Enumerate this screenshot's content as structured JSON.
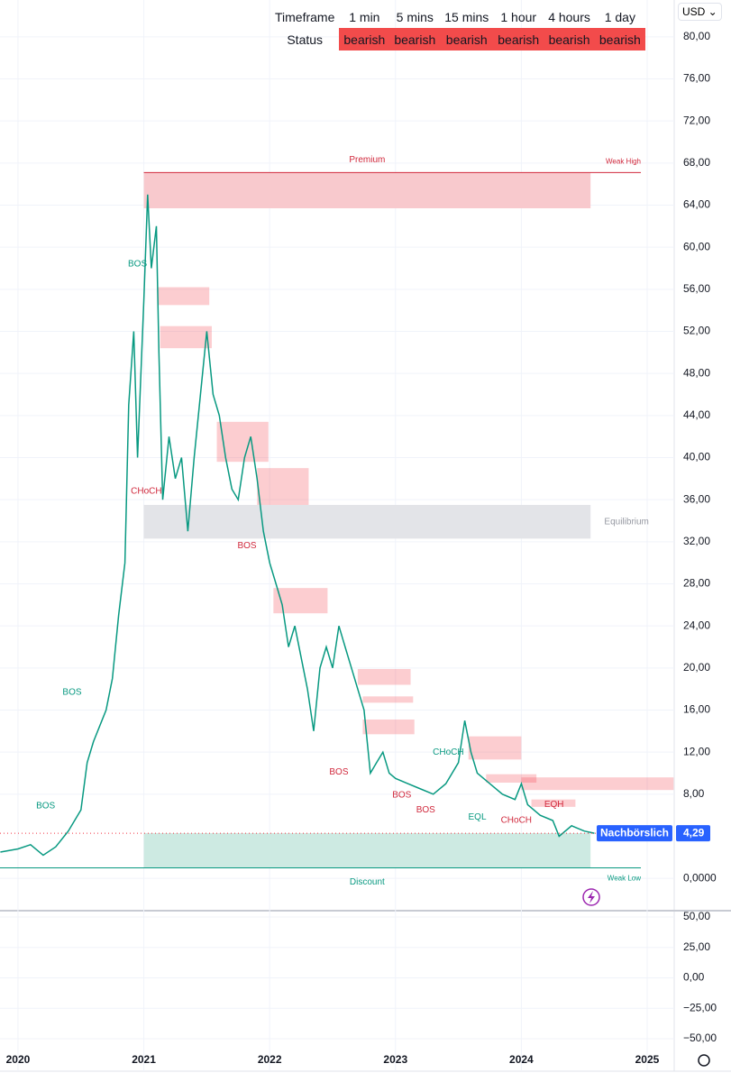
{
  "currency": "USD",
  "status_table": {
    "header": [
      "Timeframe",
      "1 min",
      "5 mins",
      "15 mins",
      "1 hour",
      "4 hours",
      "1 day"
    ],
    "row": [
      "Status",
      "bearish",
      "bearish",
      "bearish",
      "bearish",
      "bearish",
      "bearish"
    ]
  },
  "chart_data": [
    {
      "type": "line",
      "x": [
        2019.86,
        2020.0,
        2020.1,
        2020.2,
        2020.3,
        2020.4,
        2020.5,
        2020.55,
        2020.6,
        2020.7,
        2020.75,
        2020.8,
        2020.85,
        2020.88,
        2020.92,
        2020.95,
        2021.0,
        2021.03,
        2021.06,
        2021.1,
        2021.12,
        2021.15,
        2021.2,
        2021.25,
        2021.3,
        2021.35,
        2021.4,
        2021.45,
        2021.5,
        2021.55,
        2021.6,
        2021.65,
        2021.7,
        2021.75,
        2021.8,
        2021.85,
        2021.9,
        2021.95,
        2022.0,
        2022.05,
        2022.1,
        2022.15,
        2022.2,
        2022.25,
        2022.3,
        2022.35,
        2022.4,
        2022.45,
        2022.5,
        2022.55,
        2022.6,
        2022.65,
        2022.7,
        2022.75,
        2022.8,
        2022.85,
        2022.9,
        2022.95,
        2023.0,
        2023.1,
        2023.2,
        2023.3,
        2023.4,
        2023.5,
        2023.55,
        2023.6,
        2023.65,
        2023.75,
        2023.85,
        2023.95,
        2024.0,
        2024.05,
        2024.15,
        2024.25,
        2024.3,
        2024.4,
        2024.5,
        2024.58
      ],
      "values": [
        2.5,
        2.8,
        3.2,
        2.2,
        3.0,
        4.5,
        6.5,
        11,
        13,
        16,
        19,
        25,
        30,
        45,
        52,
        40,
        55,
        65,
        58,
        62,
        50,
        36,
        42,
        38,
        40,
        33,
        40,
        46,
        52,
        46,
        44,
        40,
        37,
        36,
        40,
        42,
        38,
        33,
        30,
        28,
        26,
        22,
        24,
        21,
        18,
        14,
        20,
        22,
        20,
        24,
        22,
        20,
        18,
        16,
        10,
        11,
        12,
        10,
        9.5,
        9,
        8.5,
        8,
        9,
        11,
        15,
        12,
        10,
        9,
        8,
        7.5,
        9,
        7,
        6,
        5.5,
        4,
        5,
        4.5,
        4.29
      ],
      "color": "#089981",
      "xlim": [
        2019.857,
        2025.215
      ],
      "xticks": [
        2020,
        2021,
        2022,
        2023,
        2024,
        2025
      ],
      "ylim": [
        -2.9,
        83.5
      ],
      "yticks": [
        {
          "value": 80,
          "label": "80,00"
        },
        {
          "value": 76,
          "label": "76,00"
        },
        {
          "value": 72,
          "label": "72,00"
        },
        {
          "value": 68,
          "label": "68,00"
        },
        {
          "value": 64,
          "label": "64,00"
        },
        {
          "value": 60,
          "label": "60,00"
        },
        {
          "value": 56,
          "label": "56,00"
        },
        {
          "value": 52,
          "label": "52,00"
        },
        {
          "value": 48,
          "label": "48,00"
        },
        {
          "value": 44,
          "label": "44,00"
        },
        {
          "value": 40,
          "label": "40,00"
        },
        {
          "value": 36,
          "label": "36,00"
        },
        {
          "value": 32,
          "label": "32,00"
        },
        {
          "value": 28,
          "label": "28,00"
        },
        {
          "value": 24,
          "label": "24,00"
        },
        {
          "value": 20,
          "label": "20,00"
        },
        {
          "value": 16,
          "label": "16,00"
        },
        {
          "value": 12,
          "label": "12,00"
        },
        {
          "value": 8,
          "label": "8,00"
        },
        {
          "value": 0,
          "label": "0,0000"
        }
      ],
      "grid": true,
      "zones": [
        {
          "label": "Premium",
          "label_side": "top",
          "x": [
            2021.0,
            2024.55
          ],
          "y": [
            63.7,
            67.1
          ],
          "color": "#f8c9cd"
        },
        {
          "label": "Equilibrium",
          "label_side": "right",
          "x": [
            2021.0,
            2024.55
          ],
          "y": [
            32.3,
            35.5
          ],
          "color": "#e3e4e8"
        },
        {
          "label": "Discount",
          "label_side": "bottom",
          "x": [
            2021.0,
            2024.55
          ],
          "y": [
            1.0,
            4.3
          ],
          "color": "#cdeae2"
        }
      ],
      "swing_lines": [
        {
          "label": "Weak High",
          "value": 67.1,
          "x": [
            2021.0,
            2024.95
          ],
          "color": "#d0283c"
        },
        {
          "label": "Weak Low",
          "value": 1.0,
          "x": [
            2019.857,
            2024.95
          ],
          "color": "#089981"
        }
      ],
      "order_blocks": [
        {
          "x": [
            2021.11,
            2021.52
          ],
          "y": [
            54.5,
            56.2
          ]
        },
        {
          "x": [
            2021.13,
            2021.54
          ],
          "y": [
            50.4,
            52.5
          ]
        },
        {
          "x": [
            2021.58,
            2021.99
          ],
          "y": [
            39.6,
            43.4
          ]
        },
        {
          "x": [
            2021.9,
            2022.31
          ],
          "y": [
            35.5,
            39.0
          ]
        },
        {
          "x": [
            2022.03,
            2022.46
          ],
          "y": [
            25.2,
            27.6
          ]
        },
        {
          "x": [
            2022.7,
            2023.12
          ],
          "y": [
            18.4,
            19.9
          ]
        },
        {
          "x": [
            2022.74,
            2023.14
          ],
          "y": [
            16.7,
            17.3
          ]
        },
        {
          "x": [
            2022.74,
            2023.15
          ],
          "y": [
            13.7,
            15.1
          ]
        },
        {
          "x": [
            2023.58,
            2024.0
          ],
          "y": [
            11.3,
            13.5
          ]
        },
        {
          "x": [
            2023.72,
            2024.12
          ],
          "y": [
            9.1,
            9.9
          ]
        },
        {
          "x": [
            2024.0,
            2025.21
          ],
          "y": [
            8.4,
            9.6
          ]
        },
        {
          "x": [
            2024.08,
            2024.43
          ],
          "y": [
            6.8,
            7.5
          ]
        }
      ],
      "structure_labels": [
        {
          "text": "BOS",
          "x": 2020.22,
          "y": 6.9,
          "color": "#089981"
        },
        {
          "text": "BOS",
          "x": 2020.43,
          "y": 17.7,
          "color": "#089981"
        },
        {
          "text": "BOS",
          "x": 2020.95,
          "y": 58.4,
          "color": "#089981"
        },
        {
          "text": "CHoCH",
          "x": 2021.02,
          "y": 36.8,
          "color": "#d0283c"
        },
        {
          "text": "BOS",
          "x": 2021.82,
          "y": 31.6,
          "color": "#d0283c"
        },
        {
          "text": "BOS",
          "x": 2022.55,
          "y": 10.1,
          "color": "#d0283c"
        },
        {
          "text": "BOS",
          "x": 2023.05,
          "y": 7.9,
          "color": "#d0283c"
        },
        {
          "text": "BOS",
          "x": 2023.24,
          "y": 6.5,
          "color": "#d0283c"
        },
        {
          "text": "CHoCH",
          "x": 2023.42,
          "y": 12.0,
          "color": "#089981"
        },
        {
          "text": "EQL",
          "x": 2023.65,
          "y": 5.8,
          "color": "#089981"
        },
        {
          "text": "CHoCH",
          "x": 2023.96,
          "y": 5.5,
          "color": "#d0283c"
        },
        {
          "text": "EQH",
          "x": 2024.26,
          "y": 7.0,
          "color": "#d0283c"
        }
      ],
      "last_price": {
        "label": "Nachbörslich",
        "value": 4.29,
        "value_label": "4,29"
      }
    },
    {
      "type": "oscillator",
      "ylim": [
        -59.6,
        55.2
      ],
      "yticks": [
        {
          "value": 50,
          "label": "50,00"
        },
        {
          "value": 25,
          "label": "25,00"
        },
        {
          "value": 0,
          "label": "0,00"
        },
        {
          "value": -25,
          "label": "−25,00"
        },
        {
          "value": -50,
          "label": "−50,00"
        }
      ]
    }
  ]
}
